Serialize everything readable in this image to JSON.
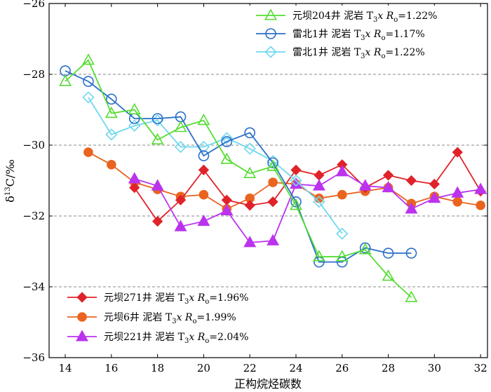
{
  "chart_data": {
    "type": "line",
    "title": "",
    "xlabel": "正构烷烃碳数",
    "ylabel": "δ13C/‰",
    "ylabel_parts": {
      "delta": "δ",
      "superscript": "13",
      "rest": "C/‰"
    },
    "xlim": [
      13.3,
      32.3
    ],
    "ylim": [
      -36,
      -26
    ],
    "xticks": [
      14,
      16,
      18,
      20,
      22,
      24,
      26,
      28,
      30,
      32
    ],
    "yticks": [
      -36,
      -34,
      -32,
      -30,
      -28,
      -26
    ],
    "grid_y_dashed": [
      -28,
      -30,
      -32,
      -34
    ],
    "legend_label_suffix": {
      "sub_o": "o"
    },
    "series": [
      {
        "name_parts": {
          "well": "元坝204井",
          "rock": "泥岩",
          "fm": "T",
          "fm_sub": "3",
          "fm_x": "x",
          "ro": "R",
          "ro_sub": "o",
          "ro_val": "=1.22%"
        },
        "color": "#55dd33",
        "marker": "triangle-open",
        "x": [
          14,
          15,
          16,
          17,
          18,
          19,
          20,
          21,
          22,
          23,
          24,
          25,
          26,
          27,
          28,
          29
        ],
        "y": [
          -28.2,
          -27.6,
          -29.1,
          -29.0,
          -29.85,
          -29.5,
          -29.3,
          -30.4,
          -30.8,
          -30.6,
          -31.7,
          -33.15,
          -33.15,
          -32.95,
          -33.7,
          -34.3
        ]
      },
      {
        "name_parts": {
          "well": "雷北1井",
          "rock": "泥岩",
          "fm": "T",
          "fm_sub": "3",
          "fm_x": "x",
          "ro": "R",
          "ro_sub": "o",
          "ro_val": "=1.17%"
        },
        "color": "#2a6fc9",
        "marker": "circle-open",
        "x": [
          14,
          15,
          16,
          17,
          18,
          19,
          20,
          21,
          22,
          23,
          24,
          25,
          26,
          27,
          28,
          29
        ],
        "y": [
          -27.9,
          -28.2,
          -28.7,
          -29.25,
          -29.25,
          -29.2,
          -30.3,
          -29.9,
          -29.65,
          -30.5,
          -31.6,
          -33.3,
          -33.3,
          -32.9,
          -33.05,
          -33.05
        ]
      },
      {
        "name_parts": {
          "well": "雷北1井",
          "rock": "泥岩",
          "fm": "T",
          "fm_sub": "3",
          "fm_x": "x",
          "ro": "R",
          "ro_sub": "o",
          "ro_val": "=1.22%"
        },
        "color": "#6fd8ee",
        "marker": "diamond-open",
        "x": [
          15,
          16,
          17,
          18,
          19,
          20,
          21,
          22,
          23,
          24,
          25,
          26
        ],
        "y": [
          -28.65,
          -29.7,
          -29.45,
          -29.3,
          -30.05,
          -30.05,
          -29.8,
          -30.1,
          -30.45,
          -31.0,
          -31.6,
          -32.5
        ]
      },
      {
        "name_parts": {
          "well": "元坝271井",
          "rock": "泥岩",
          "fm": "T",
          "fm_sub": "3",
          "fm_x": "x",
          "ro": "R",
          "ro_sub": "o",
          "ro_val": "=1.96%"
        },
        "color": "#e0232a",
        "marker": "diamond-filled",
        "x": [
          17,
          18,
          19,
          20,
          21,
          22,
          23,
          24,
          25,
          26,
          27,
          28,
          29,
          30,
          31,
          32
        ],
        "y": [
          -31.2,
          -32.15,
          -31.55,
          -30.7,
          -31.55,
          -31.7,
          -31.6,
          -30.7,
          -30.85,
          -30.55,
          -31.2,
          -30.85,
          -31.0,
          -31.1,
          -30.2,
          -31.3
        ]
      },
      {
        "name_parts": {
          "well": "元坝6井",
          "rock": "泥岩",
          "fm": "T",
          "fm_sub": "3",
          "fm_x": "x",
          "ro": "R",
          "ro_sub": "o",
          "ro_val": "=1.99%"
        },
        "color": "#e9641f",
        "marker": "circle-filled",
        "x": [
          15,
          16,
          17,
          18,
          19,
          20,
          21,
          22,
          23,
          24,
          25,
          26,
          27,
          28,
          29,
          30,
          31,
          32
        ],
        "y": [
          -30.2,
          -30.55,
          -31.05,
          -31.25,
          -31.45,
          -31.4,
          -31.8,
          -31.5,
          -31.05,
          -31.1,
          -31.5,
          -31.4,
          -31.3,
          -31.2,
          -31.65,
          -31.45,
          -31.6,
          -31.7
        ]
      },
      {
        "name_parts": {
          "well": "元坝221井",
          "rock": "泥岩",
          "fm": "T",
          "fm_sub": "3",
          "fm_x": "x",
          "ro": "R",
          "ro_sub": "o",
          "ro_val": "=2.04%"
        },
        "color": "#bb33ee",
        "marker": "triangle-filled",
        "x": [
          17,
          18,
          19,
          20,
          21,
          22,
          23,
          24,
          25,
          26,
          27,
          28,
          29,
          30,
          31,
          32
        ],
        "y": [
          -30.95,
          -31.15,
          -32.3,
          -32.15,
          -31.85,
          -32.75,
          -32.7,
          -31.1,
          -31.15,
          -30.75,
          -31.15,
          -31.2,
          -31.8,
          -31.5,
          -31.35,
          -31.25
        ]
      }
    ],
    "legend_groups": [
      {
        "position": "top-right",
        "series_indices": [
          0,
          1,
          2
        ]
      },
      {
        "position": "bottom-left",
        "series_indices": [
          3,
          4,
          5
        ]
      }
    ]
  }
}
